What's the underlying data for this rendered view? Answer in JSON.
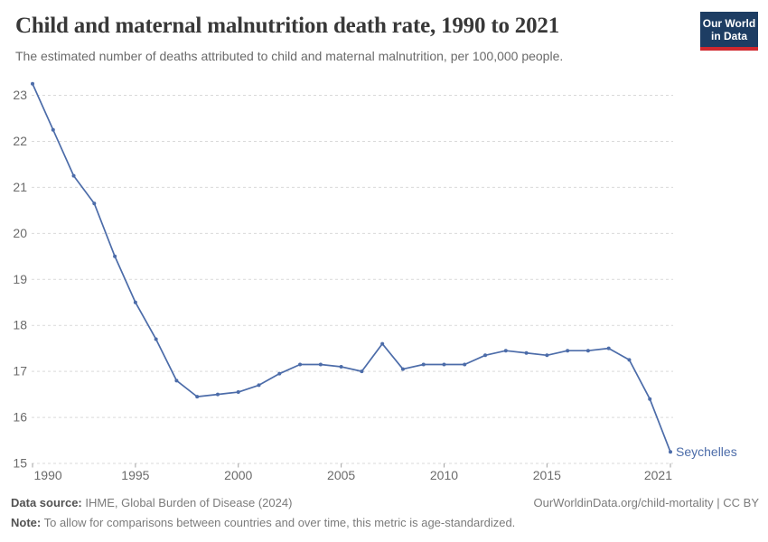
{
  "header": {
    "title": "Child and maternal malnutrition death rate, 1990 to 2021",
    "subtitle": "The estimated number of deaths attributed to child and maternal malnutrition, per 100,000 people.",
    "logo": {
      "line1": "Our World",
      "line2": "in Data"
    }
  },
  "chart_data": {
    "type": "line",
    "title": "Child and maternal malnutrition death rate, 1990 to 2021",
    "xlabel": "",
    "ylabel": "",
    "x": [
      1990,
      1991,
      1992,
      1993,
      1994,
      1995,
      1996,
      1997,
      1998,
      1999,
      2000,
      2001,
      2002,
      2003,
      2004,
      2005,
      2006,
      2007,
      2008,
      2009,
      2010,
      2011,
      2012,
      2013,
      2014,
      2015,
      2016,
      2017,
      2018,
      2019,
      2020,
      2021
    ],
    "series": [
      {
        "name": "Seychelles",
        "color": "#4c6ca9",
        "values": [
          23.25,
          22.25,
          21.25,
          20.65,
          19.5,
          18.5,
          17.7,
          16.8,
          16.45,
          16.5,
          16.55,
          16.7,
          16.95,
          17.15,
          17.15,
          17.1,
          17.0,
          17.6,
          17.05,
          17.15,
          17.15,
          17.15,
          17.35,
          17.45,
          17.4,
          17.35,
          17.45,
          17.45,
          17.5,
          17.25,
          16.4,
          15.25
        ]
      }
    ],
    "ylim": [
      15,
      23
    ],
    "yticks": [
      15,
      16,
      17,
      18,
      19,
      20,
      21,
      22,
      23
    ],
    "xticks": [
      1990,
      1995,
      2000,
      2005,
      2010,
      2015,
      2021
    ],
    "grid": "horizontal-dashed",
    "legend_position": "end-of-line-label",
    "marker": "dot"
  },
  "footer": {
    "data_source_label": "Data source:",
    "data_source_value": " IHME, Global Burden of Disease (2024)",
    "link": "OurWorldinData.org/child-mortality | CC BY",
    "note_label": "Note:",
    "note_value": " To allow for comparisons between countries and over time, this metric is age-standardized."
  },
  "colors": {
    "line": "#4c6ca9",
    "grid": "#d9d9d9",
    "tick": "#a3a3a3",
    "axis_text": "#6b6b6b",
    "logo_bg": "#1d3d63",
    "logo_accent": "#d0282e"
  }
}
